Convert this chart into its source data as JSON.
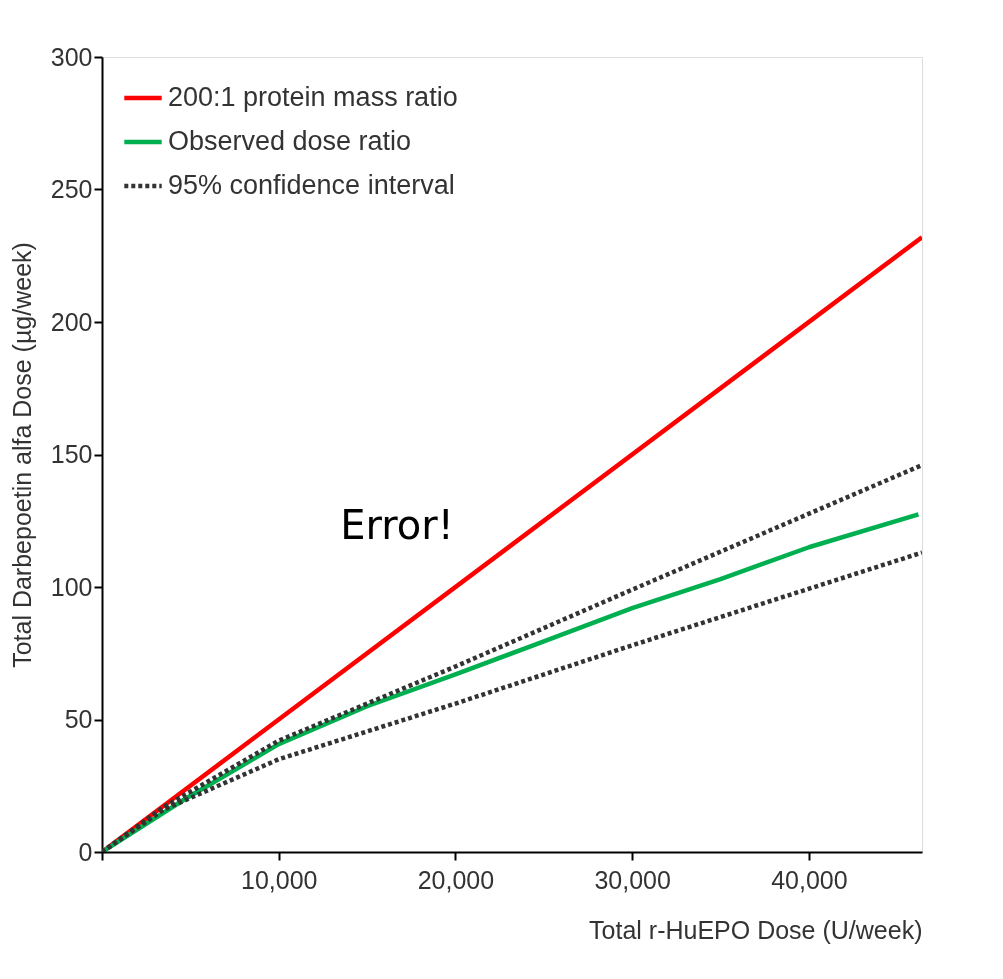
{
  "chart_data": {
    "type": "line",
    "xlabel": "Total r-HuEPO Dose (U/week)",
    "ylabel": "Total Darbepoetin alfa Dose (µg/week)",
    "xlim": [
      0,
      46400
    ],
    "ylim": [
      0,
      300
    ],
    "xticks": [
      {
        "value": 0,
        "label": null
      },
      {
        "value": 10000,
        "label": "10,000"
      },
      {
        "value": 20000,
        "label": "20,000"
      },
      {
        "value": 30000,
        "label": "30,000"
      },
      {
        "value": 40000,
        "label": "40,000"
      }
    ],
    "yticks": [
      0,
      50,
      100,
      150,
      200,
      250,
      300
    ],
    "grid": false,
    "legend": "top left",
    "marker": "none",
    "series": [
      {
        "name": "200:1 protein mass ratio",
        "color": "#ff0000",
        "line_style": "solid",
        "x": [
          0,
          46400
        ],
        "values": [
          0,
          232
        ]
      },
      {
        "name": "Observed dose ratio",
        "color": "#00b050",
        "line_style": "solid",
        "x": [
          0,
          4700,
          10000,
          15000,
          20000,
          24400,
          30000,
          35000,
          40000,
          46200
        ],
        "values": [
          0,
          20,
          40.7,
          55,
          67,
          78,
          92,
          103,
          115,
          127.4
        ]
      },
      {
        "name": "95% confidence interval",
        "color": "#333333",
        "line_style": "dashed",
        "x": [
          0,
          3500,
          10000,
          20000,
          30000,
          46400
        ],
        "values": [
          0,
          17,
          42,
          70,
          99,
          146
        ]
      },
      {
        "color": "#333333",
        "line_style": "dashed",
        "x": [
          0,
          3500,
          10000,
          20000,
          30000,
          46400
        ],
        "values": [
          0,
          16,
          35,
          56,
          78,
          113
        ]
      }
    ],
    "annotations": [
      "Error!"
    ]
  }
}
